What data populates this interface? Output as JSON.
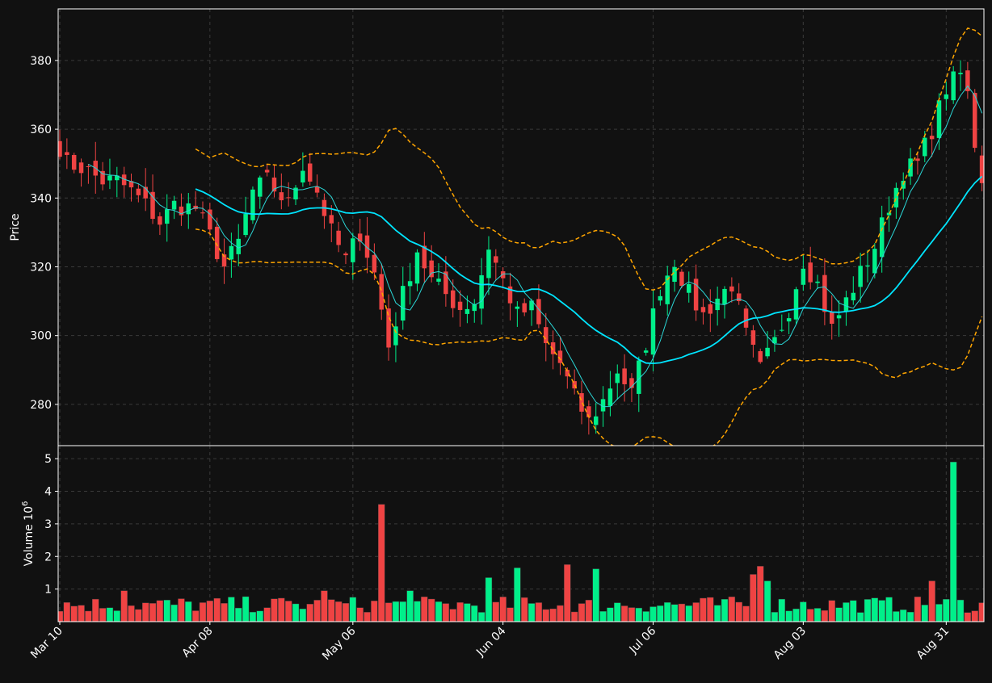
{
  "colors": {
    "background": "#111111",
    "axis": "#ffffff",
    "grid": "#3a3a3a",
    "up": "#00ef8a",
    "down": "#ef4343",
    "ma_fast": "#2bd6d6",
    "ma_slow": "#00e5ff",
    "bands": "#ffa500"
  },
  "chart_data": {
    "type": "candlestick",
    "panels": [
      {
        "name": "price",
        "ylabel": "Price",
        "ylim": [
          268,
          395
        ],
        "yticks": [
          280,
          300,
          320,
          340,
          360,
          380
        ],
        "grid": true
      },
      {
        "name": "volume",
        "ylabel": "Volume",
        "ylabel_exponent": "10",
        "ylabel_power": "6",
        "ylim": [
          0,
          5.4
        ],
        "yticks": [
          1,
          2,
          3,
          4,
          5
        ],
        "grid": true
      }
    ],
    "xtick_labels": [
      {
        "label": "Mar 10",
        "index": 0
      },
      {
        "label": "Apr 08",
        "index": 21
      },
      {
        "label": "May 06",
        "index": 41
      },
      {
        "label": "Jun 04",
        "index": 62
      },
      {
        "label": "Jul 06",
        "index": 83
      },
      {
        "label": "Aug 03",
        "index": 104
      },
      {
        "label": "Aug 31",
        "index": 124
      }
    ],
    "close_anchors": [
      [
        0,
        355
      ],
      [
        1,
        350
      ],
      [
        3,
        349
      ],
      [
        6,
        345
      ],
      [
        8,
        345
      ],
      [
        10,
        342
      ],
      [
        12,
        338
      ],
      [
        14,
        333
      ],
      [
        16,
        338
      ],
      [
        19,
        337
      ],
      [
        21,
        329
      ],
      [
        23,
        320
      ],
      [
        25,
        327
      ],
      [
        27,
        342
      ],
      [
        29,
        345
      ],
      [
        32,
        338
      ],
      [
        34,
        350
      ],
      [
        36,
        342
      ],
      [
        38,
        330
      ],
      [
        40,
        322
      ],
      [
        42,
        330
      ],
      [
        44,
        318
      ],
      [
        46,
        297
      ],
      [
        48,
        312
      ],
      [
        50,
        325
      ],
      [
        52,
        316
      ],
      [
        54,
        312
      ],
      [
        56,
        308
      ],
      [
        58,
        310
      ],
      [
        60,
        326
      ],
      [
        62,
        316
      ],
      [
        64,
        306
      ],
      [
        66,
        308
      ],
      [
        68,
        297
      ],
      [
        70,
        292
      ],
      [
        72,
        282
      ],
      [
        74,
        275
      ],
      [
        76,
        281
      ],
      [
        78,
        290
      ],
      [
        80,
        283
      ],
      [
        82,
        298
      ],
      [
        84,
        314
      ],
      [
        86,
        322
      ],
      [
        88,
        312
      ],
      [
        90,
        306
      ],
      [
        92,
        311
      ],
      [
        94,
        315
      ],
      [
        96,
        300
      ],
      [
        98,
        290
      ],
      [
        100,
        298
      ],
      [
        102,
        308
      ],
      [
        104,
        322
      ],
      [
        106,
        315
      ],
      [
        108,
        302
      ],
      [
        110,
        310
      ],
      [
        112,
        318
      ],
      [
        114,
        326
      ],
      [
        116,
        338
      ],
      [
        118,
        348
      ],
      [
        120,
        350
      ],
      [
        122,
        360
      ],
      [
        124,
        372
      ],
      [
        126,
        376
      ],
      [
        127,
        370
      ],
      [
        128,
        356
      ],
      [
        129,
        346
      ]
    ],
    "volume_spikes": [
      [
        45,
        3.6
      ],
      [
        125,
        4.9
      ],
      [
        64,
        1.65
      ],
      [
        71,
        1.75
      ],
      [
        75,
        1.62
      ],
      [
        97,
        1.45
      ],
      [
        98,
        1.7
      ],
      [
        99,
        1.25
      ],
      [
        122,
        1.25
      ],
      [
        9,
        0.95
      ],
      [
        37,
        0.95
      ],
      [
        60,
        1.35
      ],
      [
        49,
        0.95
      ]
    ],
    "volume_base": 0.55,
    "n_candles": 130,
    "ma_fast_window": 5,
    "ma_slow_window": 20,
    "band_window": 20,
    "band_width_sd": 2
  }
}
